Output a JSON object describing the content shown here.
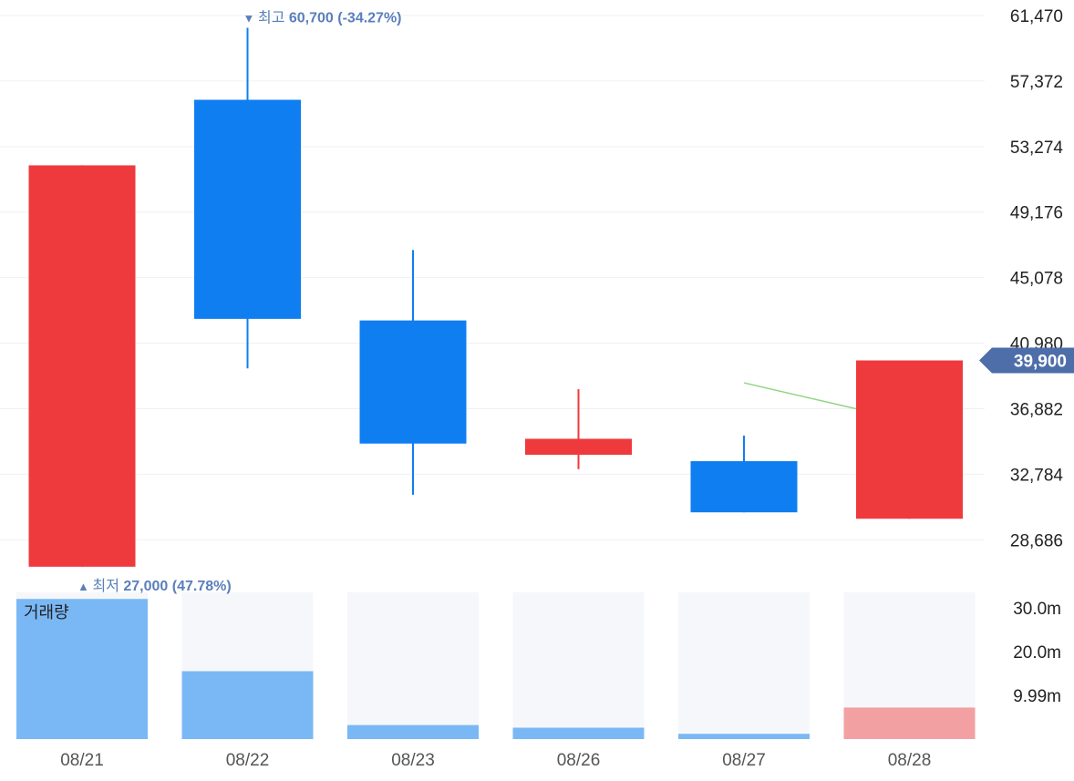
{
  "chart_data": {
    "type": "candlestick",
    "categories": [
      "08/21",
      "08/22",
      "08/23",
      "08/26",
      "08/27",
      "08/28"
    ],
    "candles": [
      {
        "date": "08/21",
        "open": 27000,
        "high": 52100,
        "low": 27000,
        "close": 52100,
        "direction": "up"
      },
      {
        "date": "08/22",
        "open": 56200,
        "high": 60700,
        "low": 39400,
        "close": 42500,
        "direction": "down"
      },
      {
        "date": "08/23",
        "open": 42400,
        "high": 46800,
        "low": 31500,
        "close": 34700,
        "direction": "down"
      },
      {
        "date": "08/26",
        "open": 34000,
        "high": 38100,
        "low": 33100,
        "close": 35000,
        "direction": "up"
      },
      {
        "date": "08/27",
        "open": 33600,
        "high": 35200,
        "low": 30400,
        "close": 30400,
        "direction": "down"
      },
      {
        "date": "08/28",
        "open": 30000,
        "high": 39900,
        "low": 30000,
        "close": 39900,
        "direction": "up"
      }
    ],
    "moving_average": [
      {
        "date": "08/27",
        "value": 38500
      },
      {
        "date": "08/28",
        "value": 36500
      }
    ],
    "price_axis": {
      "ticks": [
        61470,
        57372,
        53274,
        49176,
        45078,
        40980,
        36882,
        32784,
        28686
      ],
      "tick_labels": [
        "61,470",
        "57,372",
        "53,274",
        "49,176",
        "45,078",
        "40,980",
        "36,882",
        "32,784",
        "28,686"
      ],
      "range": [
        25966,
        62440
      ]
    },
    "current_price": {
      "value": 39900,
      "label": "39,900"
    },
    "high_marker": {
      "arrow": "▼",
      "label": "최고",
      "value_text": "60,700 (-34.27%)",
      "date": "08/22"
    },
    "low_marker": {
      "arrow": "▲",
      "label": "최저",
      "value_text": "27,000 (47.78%)",
      "date": "08/21"
    },
    "volume": {
      "title": "거래량",
      "values": [
        32000000,
        15500000,
        3200000,
        2600000,
        1200000,
        7200000
      ],
      "direction": [
        "down",
        "down",
        "down",
        "down",
        "down",
        "up"
      ],
      "tick_values": [
        30000000,
        20000000,
        9990000
      ],
      "tick_labels": [
        "30.0m",
        "20.0m",
        "9.99m"
      ],
      "max": 33500000
    },
    "colors": {
      "up": "#ee3a3c",
      "down": "#0f7ef0",
      "volume_up": "#f2a0a2",
      "volume_down": "#7ab8f5",
      "moving_average": "#8fd680",
      "marker_text": "#5a7fba",
      "price_tag": "#4d6ea8",
      "grid": "#eef0f4",
      "volume_bg": "#f6f7fb",
      "axis_text": "#222222",
      "date_text": "#555555"
    },
    "grid": true
  }
}
